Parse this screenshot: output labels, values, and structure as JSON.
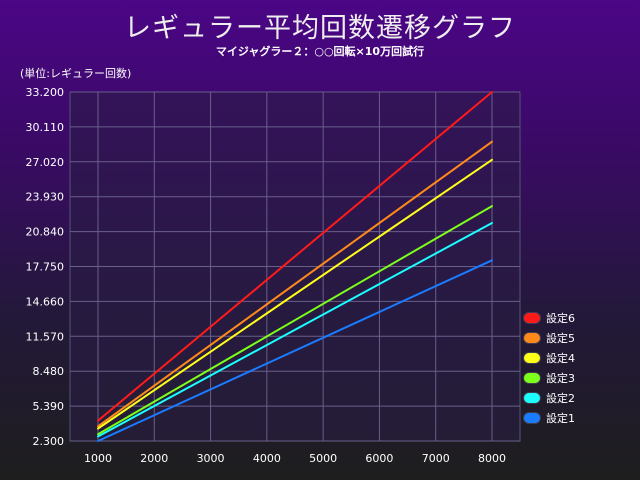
{
  "chart_data": {
    "type": "line",
    "title": "レギュラー平均回数遷移グラフ",
    "subtitle": "マイジャグラー２：○○回転×10万回試行",
    "ylabel": "(単位:レギュラー回数)",
    "xlabel": "",
    "x": [
      1000,
      8000
    ],
    "x_ticks": [
      "1000",
      "2000",
      "3000",
      "4000",
      "5000",
      "6000",
      "7000",
      "8000"
    ],
    "y_ticks": [
      "2.300",
      "5.390",
      "8.480",
      "11.570",
      "14.660",
      "17.750",
      "20.840",
      "23.930",
      "27.020",
      "30.110",
      "33.200"
    ],
    "xlim": [
      1000,
      8000
    ],
    "ylim": [
      2.3,
      33.2
    ],
    "grid": true,
    "legend_position": "right",
    "series": [
      {
        "name": "設定6",
        "color": "#ff1a1a",
        "values": [
          4.1,
          33.2
        ]
      },
      {
        "name": "設定5",
        "color": "#ff8a1a",
        "values": [
          3.6,
          28.8
        ]
      },
      {
        "name": "設定4",
        "color": "#ffff1a",
        "values": [
          3.4,
          27.2
        ]
      },
      {
        "name": "設定3",
        "color": "#7cff1a",
        "values": [
          2.9,
          23.1
        ]
      },
      {
        "name": "設定2",
        "color": "#1affff",
        "values": [
          2.7,
          21.6
        ]
      },
      {
        "name": "設定1",
        "color": "#1a7cff",
        "values": [
          2.3,
          18.3
        ]
      }
    ]
  }
}
